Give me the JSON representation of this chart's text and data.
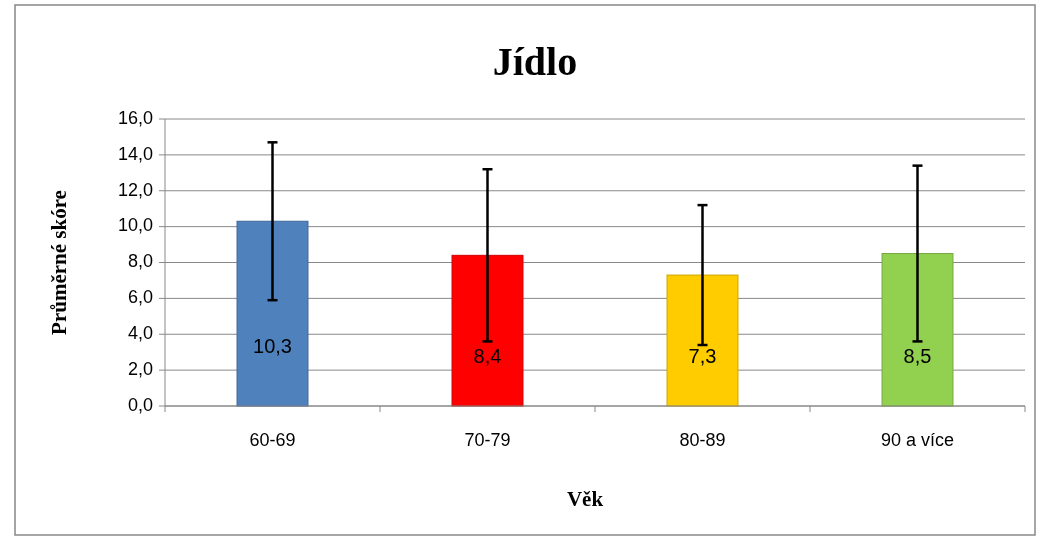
{
  "chart_data": {
    "type": "bar",
    "title": "Jídlo",
    "xlabel": "Věk",
    "ylabel": "Průměrné skóre",
    "categories": [
      "60-69",
      "70-79",
      "80-89",
      "90 a více"
    ],
    "values": [
      10.3,
      8.4,
      7.3,
      8.5
    ],
    "colors": [
      "#4f81bd",
      "#ff0000",
      "#ffcc00",
      "#92d050"
    ],
    "errors": [
      4.4,
      4.8,
      3.9,
      4.9
    ],
    "value_labels": [
      "10,3",
      "8,4",
      "7,3",
      "8,5"
    ],
    "ylim": [
      0,
      16
    ],
    "yticks": [
      {
        "value": 0,
        "label": "0,0"
      },
      {
        "value": 2,
        "label": "2,0"
      },
      {
        "value": 4,
        "label": "4,0"
      },
      {
        "value": 6,
        "label": "6,0"
      },
      {
        "value": 8,
        "label": "8,0"
      },
      {
        "value": 10,
        "label": "10,0"
      },
      {
        "value": 12,
        "label": "12,0"
      },
      {
        "value": 14,
        "label": "14,0"
      },
      {
        "value": 16,
        "label": "16,0"
      }
    ],
    "grid": "y"
  }
}
